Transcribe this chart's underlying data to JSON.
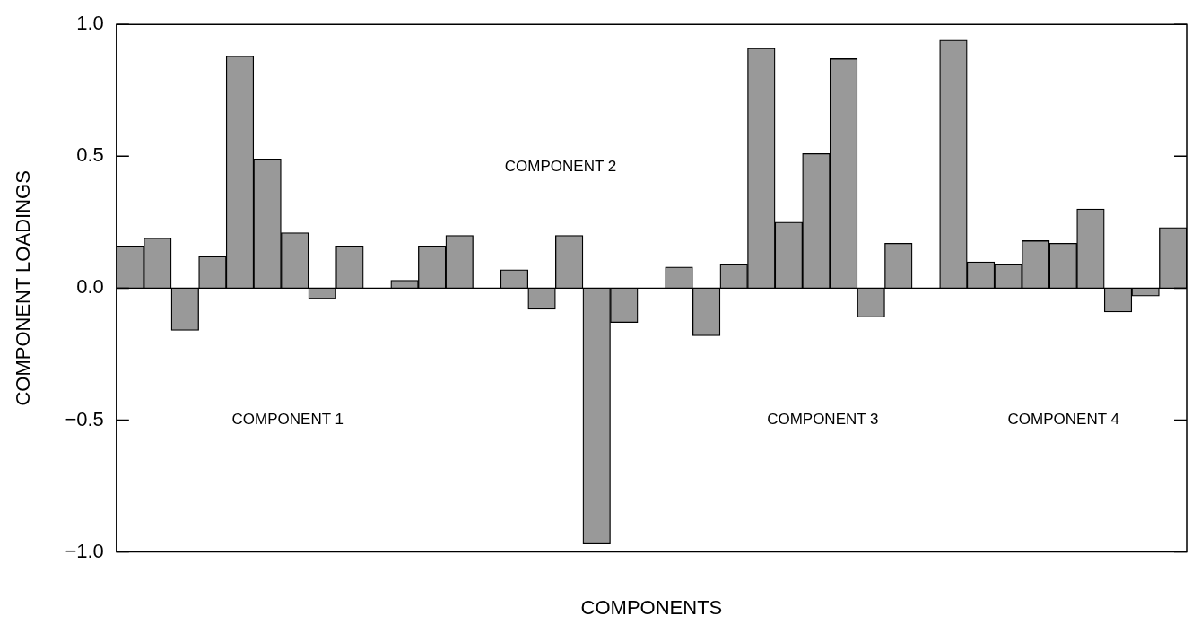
{
  "chart_data": {
    "type": "bar",
    "xlabel": "COMPONENTS",
    "ylabel": "COMPONENT LOADINGS",
    "categories": [
      null,
      null,
      null,
      null,
      null,
      null,
      null,
      null,
      null,
      null,
      null,
      null,
      null,
      null,
      null,
      null,
      null,
      null,
      null,
      null,
      null,
      null,
      null,
      null,
      null,
      null,
      null,
      null,
      null,
      null,
      null,
      null,
      null,
      null,
      null,
      null,
      null,
      null,
      null
    ],
    "values": [
      0.16,
      0.19,
      -0.16,
      0.12,
      0.88,
      0.49,
      0.21,
      -0.04,
      0.16,
      null,
      0.03,
      0.16,
      0.2,
      0.0,
      0.07,
      -0.08,
      0.2,
      -0.97,
      -0.13,
      null,
      0.08,
      -0.18,
      0.09,
      0.91,
      0.25,
      0.51,
      0.87,
      -0.11,
      0.17,
      null,
      0.94,
      0.1,
      0.09,
      0.18,
      0.17,
      0.3,
      -0.09,
      -0.03,
      0.23
    ],
    "color": "#999999",
    "ylim": [
      -1.0,
      1.0
    ],
    "yticks": [
      {
        "value": -1,
        "label": "−1.0"
      },
      {
        "value": -0.5,
        "label": "−0.5"
      },
      {
        "value": 0,
        "label": "0.0"
      },
      {
        "value": 0.5,
        "label": "0.5"
      },
      {
        "value": 1,
        "label": "1.0"
      }
    ],
    "tick_labels": "y",
    "ref_lines": [
      {
        "axis": "y",
        "value": 0
      }
    ],
    "annotations": [
      "COMPONENT 1",
      "COMPONENT 2",
      "COMPONENT 3",
      "COMPONENT 4"
    ]
  }
}
